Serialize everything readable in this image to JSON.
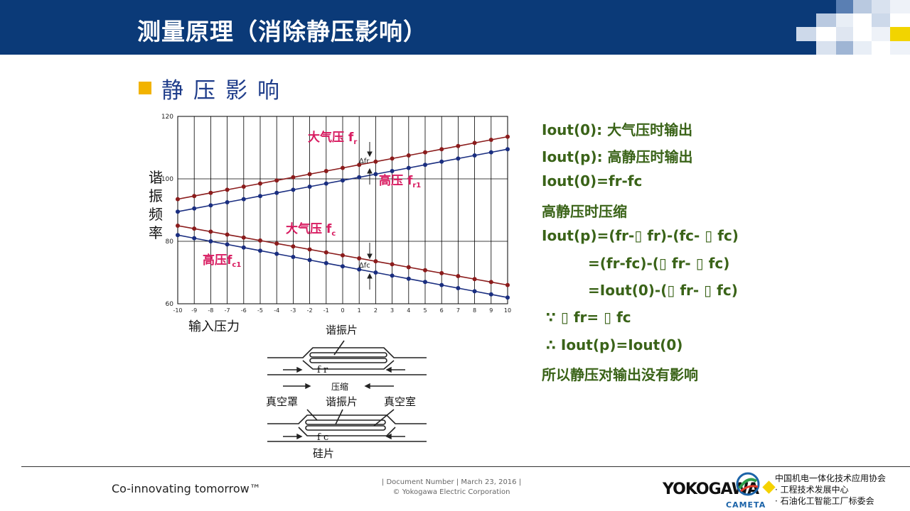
{
  "header": {
    "title": "测量原理（消除静压影响）"
  },
  "section": {
    "bullet": "静压影响"
  },
  "chart_data": {
    "type": "line",
    "x": [
      -10,
      -9,
      -8,
      -7,
      -6,
      -5,
      -4,
      -3,
      -2,
      -1,
      0,
      1,
      2,
      3,
      4,
      5,
      6,
      7,
      8,
      9,
      10
    ],
    "xlim": [
      -10,
      10
    ],
    "ylim": [
      60,
      120
    ],
    "ytick_labels": [
      "60",
      "80",
      "100",
      "120"
    ],
    "xtick_labels": [
      "-10",
      "-9",
      "-8",
      "-7",
      "-6",
      "-5",
      "-4",
      "-3",
      "-2",
      "-1",
      "0",
      "1",
      "2",
      "3",
      "4",
      "5",
      "6",
      "7",
      "8",
      "9",
      "10"
    ],
    "ylabel": "谐振频率",
    "xlabel": "输入压力",
    "grid": true,
    "series": [
      {
        "color": "#8b1c1c",
        "start": 93.5,
        "end": 113.5
      },
      {
        "color": "#1a2e80",
        "start": 89.5,
        "end": 109.5
      },
      {
        "color": "#8b1c1c",
        "start": 85.0,
        "end": 66.0
      },
      {
        "color": "#1a2e80",
        "start": 82.0,
        "end": 62.0
      }
    ],
    "annotations": {
      "fr_top_main": "大气压 f",
      "fr_top_sub": "r",
      "fr_high_main": "高压 f",
      "fr_high_sub": "r1",
      "fc_top_main": "大气压 f",
      "fc_top_sub": "c",
      "fc_high_main": "高压f",
      "fc_high_sub": "c1",
      "delta_fr": "∆fr",
      "delta_fc": "∆fc"
    },
    "annotation_color": "#d81b60"
  },
  "diagram": {
    "top_label": "谐振片",
    "top_force": "f r",
    "compress_label": "压缩",
    "vacuum_cover": "真空罩",
    "resonator": "谐振片",
    "vacuum_chamber": "真空室",
    "bottom_force": "f c",
    "silicon": "硅片"
  },
  "equations": [
    "Iout(0): 大气压时输出",
    "Iout(p): 高静压时输出",
    "Iout(0)=fr-fc",
    "高静压时压缩",
    "Iout(p)=(fr-▯ fr)-(fc- ▯ fc)",
    "=(fr-fc)-(▯ fr- ▯ fc)",
    "=Iout(0)-(▯ fr- ▯ fc)",
    "∵  ▯ fr= ▯ fc",
    "∴  Iout(p)=Iout(0)",
    "所以静压对输出没有影响"
  ],
  "footer": {
    "tagline": "Co-innovating tomorrow™",
    "doc_line1": "| Document Number | March 23, 2016 |",
    "doc_line2": "© Yokogawa Electric Corporation",
    "brand": "YOKOGAWA",
    "logo_text": "CAMETA",
    "org_line1": "中国机电一体化技术应用协会",
    "org_line2": "· 工程技术发展中心",
    "org_line3": "· 石油化工智能工厂标委会"
  },
  "colors": {
    "header_bg": "#0b3a78",
    "bullet": "#f2b300",
    "text_green": "#3a6318"
  }
}
